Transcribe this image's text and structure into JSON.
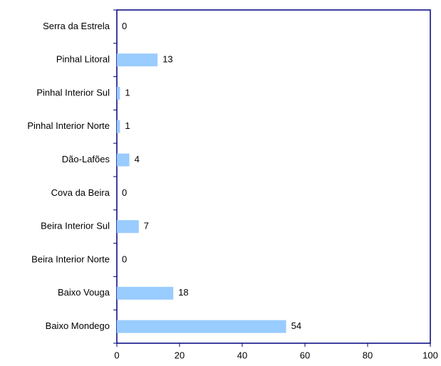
{
  "chart_data": {
    "type": "bar",
    "orientation": "horizontal",
    "categories": [
      "Serra da Estrela",
      "Pinhal Litoral",
      "Pinhal Interior Sul",
      "Pinhal Interior Norte",
      "Dão-Lafões",
      "Cova da Beira",
      "Beira Interior Sul",
      "Beira Interior Norte",
      "Baixo Vouga",
      "Baixo Mondego"
    ],
    "values": [
      0,
      13,
      1,
      1,
      4,
      0,
      7,
      0,
      18,
      54
    ],
    "color": "#99ccff",
    "xlim": [
      0,
      100
    ],
    "xticks": [
      0,
      20,
      40,
      60,
      80,
      100
    ]
  }
}
